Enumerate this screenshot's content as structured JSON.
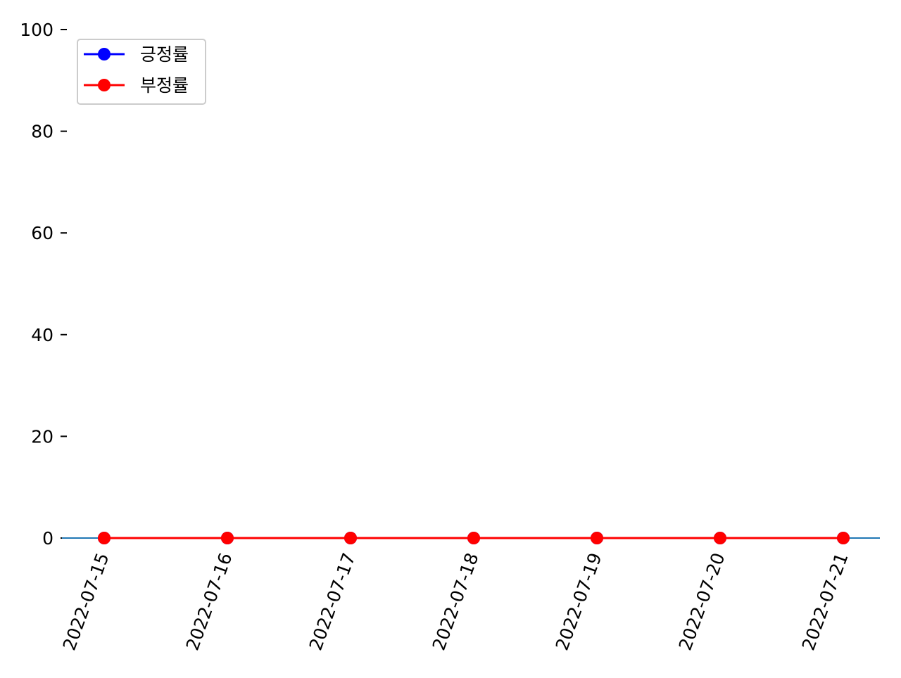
{
  "chart_data": {
    "type": "line",
    "title": "",
    "xlabel": "",
    "ylabel": "",
    "x": [
      "2022-07-15",
      "2022-07-16",
      "2022-07-17",
      "2022-07-18",
      "2022-07-19",
      "2022-07-20",
      "2022-07-21"
    ],
    "series": [
      {
        "name": "긍정률",
        "color": "#0000ff",
        "marker": "circle",
        "values": [
          0,
          0,
          0,
          0,
          0,
          0,
          0
        ]
      },
      {
        "name": "부정률",
        "color": "#ff0000",
        "marker": "circle",
        "values": [
          0,
          0,
          0,
          0,
          0,
          0,
          0
        ]
      }
    ],
    "ylim": [
      0,
      100
    ],
    "yticks": [
      0,
      20,
      40,
      60,
      80,
      100
    ],
    "grid": false,
    "legend_position": "top-left",
    "baseline_color": "#1f77b4"
  }
}
